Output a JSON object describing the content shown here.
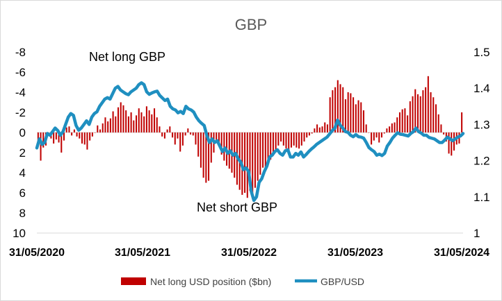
{
  "chart_data": {
    "type": "bar+line",
    "title": "GBP",
    "colors": {
      "bars": "#c00000",
      "line": "#1f8fc0"
    },
    "x_tick_labels": [
      "31/05/2020",
      "31/05/2021",
      "31/05/2022",
      "31/05/2023",
      "31/05/2024"
    ],
    "x_range": [
      "31/05/2020",
      "31/05/2024"
    ],
    "left_axis": {
      "ticks": [
        "-8",
        "-6",
        "-4",
        "-2",
        "0",
        "2",
        "4",
        "6",
        "8",
        "10"
      ],
      "range": [
        -8,
        10
      ],
      "reversed": true
    },
    "right_axis": {
      "ticks": [
        "1.5",
        "1.4",
        "1.3",
        "1.2",
        "1.1",
        "1"
      ],
      "range": [
        1.0,
        1.5
      ]
    },
    "annotations": [
      "Net long GBP",
      "Net short GBP"
    ],
    "legend": {
      "position": "bottom",
      "bar_label": "Net long USD position ($bn)",
      "line_label": "GBP/USD"
    },
    "series": [
      {
        "name": "Net long USD position ($bn)",
        "axis": "left",
        "kind": "bar",
        "values": [
          1.0,
          2.8,
          1.5,
          1.3,
          0.3,
          0.6,
          1.1,
          0.7,
          1.0,
          2.0,
          0.8,
          -0.5,
          -0.6,
          0.3,
          -0.3,
          0.4,
          0.6,
          1.1,
          1.2,
          1.7,
          0.8,
          0.4,
          0.0,
          -0.7,
          -0.3,
          -0.9,
          -1.5,
          -1.1,
          -1.4,
          -2.1,
          -1.6,
          -2.5,
          -3.0,
          -2.7,
          -2.2,
          -1.6,
          -2.0,
          -1.2,
          -1.7,
          -2.4,
          -2.0,
          -1.6,
          -2.6,
          -2.2,
          -1.8,
          -2.4,
          -1.5,
          -0.6,
          0.4,
          0.6,
          -0.3,
          -0.6,
          0.5,
          1.2,
          0.6,
          1.9,
          1.3,
          0.3,
          -0.4,
          0.2,
          0.3,
          1.2,
          2.4,
          3.5,
          4.5,
          5.0,
          4.8,
          3.0,
          2.0,
          1.0,
          1.3,
          2.2,
          2.8,
          3.3,
          3.6,
          4.0,
          4.5,
          5.2,
          5.7,
          6.2,
          6.0,
          6.5,
          5.8,
          6.1,
          5.5,
          4.8,
          4.2,
          3.5,
          3.6,
          3.0,
          2.7,
          2.3,
          1.8,
          1.3,
          0.9,
          1.3,
          1.6,
          1.8,
          1.5,
          1.3,
          1.5,
          1.6,
          1.3,
          0.9,
          0.5,
          0.3,
          0.1,
          -0.4,
          -0.8,
          -0.5,
          -0.6,
          -1.0,
          -0.8,
          -3.5,
          -4.2,
          -4.5,
          -5.2,
          -4.8,
          -4.5,
          -3.3,
          -4.0,
          -3.9,
          -3.5,
          -2.8,
          -3.2,
          -3.0,
          -2.2,
          -0.8,
          0.0,
          1.2,
          0.8,
          0.5,
          1.0,
          0.5,
          0.1,
          -0.4,
          -0.6,
          -0.9,
          -1.0,
          -1.5,
          -2.0,
          -2.3,
          -2.4,
          -1.7,
          -3.1,
          -3.6,
          -4.3,
          -3.8,
          -3.6,
          -4.2,
          -4.5,
          -5.6,
          -4.0,
          -3.5,
          -2.8,
          -1.8,
          -0.8,
          0.2,
          0.9,
          2.1,
          2.3,
          1.8,
          1.2,
          1.1,
          -2.0
        ]
      },
      {
        "name": "GBP/USD",
        "axis": "right",
        "kind": "line",
        "values": [
          1.235,
          1.26,
          1.245,
          1.25,
          1.275,
          1.27,
          1.28,
          1.29,
          1.283,
          1.27,
          1.28,
          1.3,
          1.32,
          1.33,
          1.325,
          1.297,
          1.284,
          1.29,
          1.3,
          1.31,
          1.3,
          1.32,
          1.33,
          1.335,
          1.35,
          1.36,
          1.37,
          1.374,
          1.37,
          1.385,
          1.4,
          1.405,
          1.395,
          1.39,
          1.385,
          1.382,
          1.39,
          1.395,
          1.4,
          1.41,
          1.415,
          1.41,
          1.39,
          1.383,
          1.387,
          1.39,
          1.392,
          1.38,
          1.373,
          1.366,
          1.37,
          1.35,
          1.343,
          1.34,
          1.332,
          1.336,
          1.33,
          1.35,
          1.343,
          1.34,
          1.334,
          1.32,
          1.31,
          1.303,
          1.297,
          1.27,
          1.25,
          1.26,
          1.25,
          1.255,
          1.24,
          1.225,
          1.235,
          1.22,
          1.227,
          1.215,
          1.22,
          1.205,
          1.196,
          1.175,
          1.18,
          1.17,
          1.115,
          1.09,
          1.1,
          1.14,
          1.15,
          1.17,
          1.185,
          1.21,
          1.215,
          1.225,
          1.23,
          1.22,
          1.215,
          1.227,
          1.23,
          1.21,
          1.21,
          1.22,
          1.215,
          1.224,
          1.21,
          1.217,
          1.225,
          1.232,
          1.238,
          1.245,
          1.25,
          1.255,
          1.26,
          1.265,
          1.274,
          1.283,
          1.29,
          1.312,
          1.298,
          1.29,
          1.28,
          1.278,
          1.27,
          1.266,
          1.272,
          1.266,
          1.265,
          1.262,
          1.25,
          1.236,
          1.23,
          1.225,
          1.215,
          1.218,
          1.214,
          1.22,
          1.24,
          1.25,
          1.262,
          1.27,
          1.277,
          1.273,
          1.272,
          1.27,
          1.268,
          1.275,
          1.28,
          1.29,
          1.28,
          1.276,
          1.27,
          1.27,
          1.264,
          1.262,
          1.26,
          1.255,
          1.25,
          1.25,
          1.257,
          1.265,
          1.26,
          1.255,
          1.26,
          1.265,
          1.268,
          1.275
        ]
      }
    ]
  }
}
